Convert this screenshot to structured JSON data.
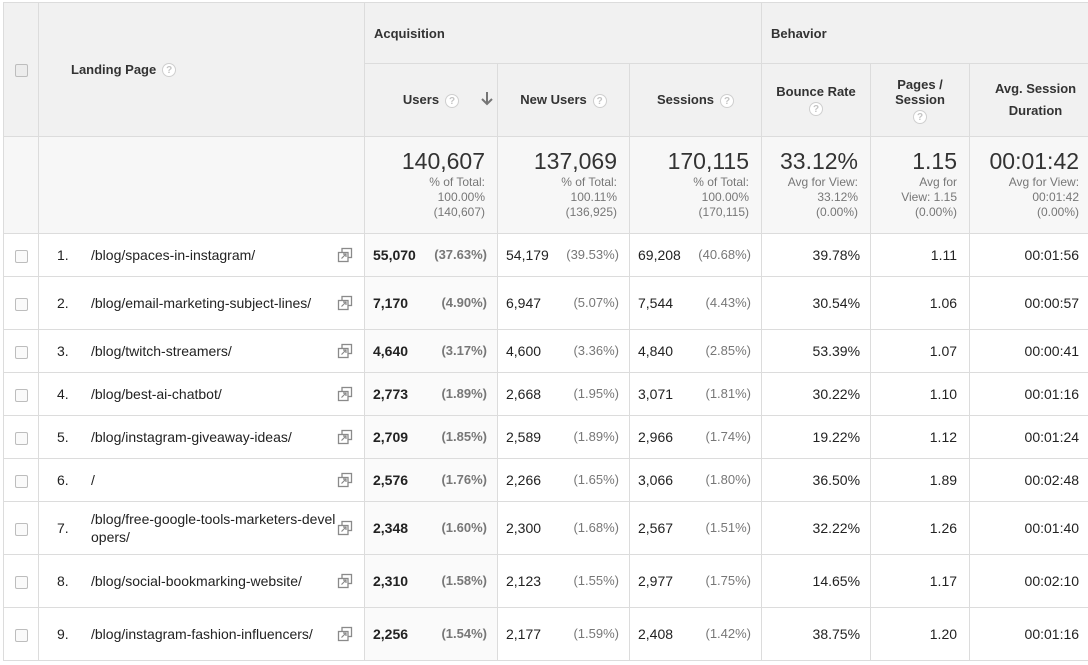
{
  "header": {
    "landing_page": "Landing Page",
    "acquisition": "Acquisition",
    "behavior": "Behavior",
    "users": "Users",
    "new_users": "New Users",
    "sessions": "Sessions",
    "bounce_rate": "Bounce Rate",
    "pages_session": "Pages / Session",
    "avg_session_duration": "Avg. Session Duration",
    "help_glyph": "?",
    "sort_glyph": "↓"
  },
  "totals": {
    "users": {
      "value": "140,607",
      "l1": "% of Total:",
      "l2": "100.00%",
      "l3": "(140,607)"
    },
    "new_users": {
      "value": "137,069",
      "l1": "% of Total:",
      "l2": "100.11%",
      "l3": "(136,925)"
    },
    "sessions": {
      "value": "170,115",
      "l1": "% of Total:",
      "l2": "100.00%",
      "l3": "(170,115)"
    },
    "bounce_rate": {
      "value": "33.12%",
      "l1": "Avg for View:",
      "l2": "33.12%",
      "l3": "(0.00%)"
    },
    "pages_session": {
      "value": "1.15",
      "l1": "Avg for",
      "l2": "View: 1.15",
      "l3": "(0.00%)"
    },
    "avg_session_duration": {
      "value": "00:01:42",
      "l1": "Avg for View:",
      "l2": "00:01:42",
      "l3": "(0.00%)"
    }
  },
  "rows": [
    {
      "index": "1.",
      "page": "/blog/spaces-in-instagram/",
      "users": "55,070",
      "users_pct": "(37.63%)",
      "new_users": "54,179",
      "new_users_pct": "(39.53%)",
      "sessions": "69,208",
      "sessions_pct": "(40.68%)",
      "bounce_rate": "39.78%",
      "pages_session": "1.11",
      "avg_duration": "00:01:56"
    },
    {
      "index": "2.",
      "page": "/blog/email-marketing-subject-lines/",
      "users": "7,170",
      "users_pct": "(4.90%)",
      "new_users": "6,947",
      "new_users_pct": "(5.07%)",
      "sessions": "7,544",
      "sessions_pct": "(4.43%)",
      "bounce_rate": "30.54%",
      "pages_session": "1.06",
      "avg_duration": "00:00:57"
    },
    {
      "index": "3.",
      "page": "/blog/twitch-streamers/",
      "users": "4,640",
      "users_pct": "(3.17%)",
      "new_users": "4,600",
      "new_users_pct": "(3.36%)",
      "sessions": "4,840",
      "sessions_pct": "(2.85%)",
      "bounce_rate": "53.39%",
      "pages_session": "1.07",
      "avg_duration": "00:00:41"
    },
    {
      "index": "4.",
      "page": "/blog/best-ai-chatbot/",
      "users": "2,773",
      "users_pct": "(1.89%)",
      "new_users": "2,668",
      "new_users_pct": "(1.95%)",
      "sessions": "3,071",
      "sessions_pct": "(1.81%)",
      "bounce_rate": "30.22%",
      "pages_session": "1.10",
      "avg_duration": "00:01:16"
    },
    {
      "index": "5.",
      "page": "/blog/instagram-giveaway-ideas/",
      "users": "2,709",
      "users_pct": "(1.85%)",
      "new_users": "2,589",
      "new_users_pct": "(1.89%)",
      "sessions": "2,966",
      "sessions_pct": "(1.74%)",
      "bounce_rate": "19.22%",
      "pages_session": "1.12",
      "avg_duration": "00:01:24"
    },
    {
      "index": "6.",
      "page": "/",
      "users": "2,576",
      "users_pct": "(1.76%)",
      "new_users": "2,266",
      "new_users_pct": "(1.65%)",
      "sessions": "3,066",
      "sessions_pct": "(1.80%)",
      "bounce_rate": "36.50%",
      "pages_session": "1.89",
      "avg_duration": "00:02:48"
    },
    {
      "index": "7.",
      "page": "/blog/free-google-tools-marketers-developers/",
      "users": "2,348",
      "users_pct": "(1.60%)",
      "new_users": "2,300",
      "new_users_pct": "(1.68%)",
      "sessions": "2,567",
      "sessions_pct": "(1.51%)",
      "bounce_rate": "32.22%",
      "pages_session": "1.26",
      "avg_duration": "00:01:40"
    },
    {
      "index": "8.",
      "page": "/blog/social-bookmarking-website/",
      "users": "2,310",
      "users_pct": "(1.58%)",
      "new_users": "2,123",
      "new_users_pct": "(1.55%)",
      "sessions": "2,977",
      "sessions_pct": "(1.75%)",
      "bounce_rate": "14.65%",
      "pages_session": "1.17",
      "avg_duration": "00:02:10"
    },
    {
      "index": "9.",
      "page": "/blog/instagram-fashion-influencers/",
      "users": "2,256",
      "users_pct": "(1.54%)",
      "new_users": "2,177",
      "new_users_pct": "(1.59%)",
      "sessions": "2,408",
      "sessions_pct": "(1.42%)",
      "bounce_rate": "38.75%",
      "pages_session": "1.20",
      "avg_duration": "00:01:16"
    }
  ],
  "icons": {
    "popout": "popout-window-icon",
    "help": "help-icon",
    "sort": "sort-descending-icon"
  }
}
